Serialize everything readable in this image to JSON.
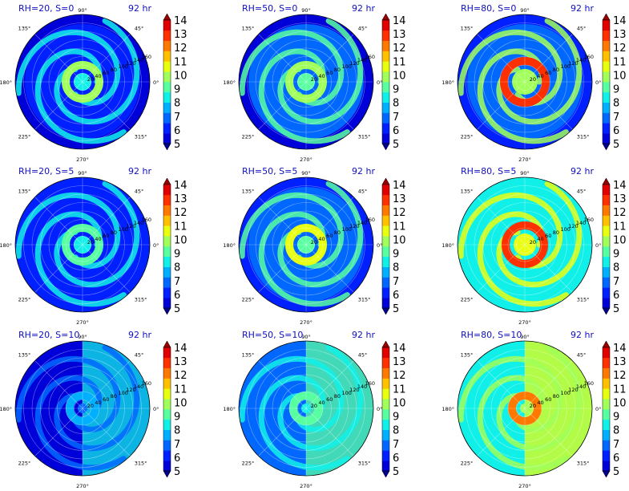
{
  "time_label": "92 hr",
  "colorbar": {
    "levels": [
      5,
      6,
      7,
      8,
      9,
      10,
      11,
      12,
      13,
      14
    ],
    "tick_labels": [
      "5",
      "6",
      "7",
      "8",
      "9",
      "10",
      "11",
      "12",
      "13",
      "14"
    ],
    "colors": [
      "#00008f",
      "#0000d8",
      "#0020ff",
      "#0068ff",
      "#00b0ff",
      "#10f0e8",
      "#58ffa0",
      "#a0ff58",
      "#e8ff10",
      "#ffc000",
      "#ff7800",
      "#ff3000",
      "#e00000",
      "#980000"
    ],
    "extend": "both"
  },
  "polar_axes": {
    "angle_labels": [
      "0°",
      "45°",
      "90°",
      "135°",
      "180°",
      "225°",
      "270°",
      "315°"
    ],
    "radius_labels": [
      "20",
      "40",
      "60",
      "80",
      "100",
      "120",
      "140",
      "160"
    ]
  },
  "chart_data": [
    {
      "type": "heatmap",
      "projection": "polar",
      "title": "RH=20, S=0",
      "time": "92 hr",
      "rmax": 160,
      "features": {
        "background_level": 6.0,
        "outer_ring_level": 5.0,
        "core_level": 9.5,
        "spiral_band_level": 8.5,
        "inner_eye_radius": 15
      }
    },
    {
      "type": "heatmap",
      "projection": "polar",
      "title": "RH=50, S=0",
      "time": "92 hr",
      "rmax": 160,
      "features": {
        "background_level": 6.5,
        "outer_ring_level": 5.5,
        "core_level": 10.0,
        "spiral_band_level": 9.0,
        "inner_eye_radius": 15
      }
    },
    {
      "type": "heatmap",
      "projection": "polar",
      "title": "RH=80, S=0",
      "time": "92 hr",
      "rmax": 160,
      "features": {
        "background_level": 7.0,
        "outer_ring_level": 6.0,
        "core_level": 13.0,
        "spiral_band_level": 9.5,
        "inner_eye_radius": 20
      }
    },
    {
      "type": "heatmap",
      "projection": "polar",
      "title": "RH=20, S=5",
      "time": "92 hr",
      "rmax": 160,
      "features": {
        "background_level": 6.0,
        "outer_ring_level": 6.0,
        "core_level": 9.0,
        "spiral_band_level": 8.5,
        "inner_eye_radius": 15
      }
    },
    {
      "type": "heatmap",
      "projection": "polar",
      "title": "RH=50, S=5",
      "time": "92 hr",
      "rmax": 160,
      "features": {
        "background_level": 6.5,
        "outer_ring_level": 6.0,
        "core_level": 10.5,
        "spiral_band_level": 9.0,
        "inner_eye_radius": 15
      }
    },
    {
      "type": "heatmap",
      "projection": "polar",
      "title": "RH=80, S=5",
      "time": "92 hr",
      "rmax": 160,
      "features": {
        "background_level": 8.5,
        "outer_ring_level": 8.0,
        "core_level": 13.0,
        "spiral_band_level": 10.5,
        "inner_eye_radius": 18
      }
    },
    {
      "type": "heatmap",
      "projection": "polar",
      "title": "RH=20, S=10",
      "time": "92 hr",
      "rmax": 160,
      "features": {
        "background_level": 5.5,
        "outer_ring_level": 5.5,
        "core_level": 7.5,
        "spiral_band_level": 7.0,
        "inner_eye_radius": 10,
        "east_half_level": 8.0
      }
    },
    {
      "type": "heatmap",
      "projection": "polar",
      "title": "RH=50, S=10",
      "time": "92 hr",
      "rmax": 160,
      "features": {
        "background_level": 7.0,
        "outer_ring_level": 6.5,
        "core_level": 9.0,
        "spiral_band_level": 8.5,
        "inner_eye_radius": 10,
        "east_half_level": 9.0
      }
    },
    {
      "type": "heatmap",
      "projection": "polar",
      "title": "RH=80, S=10",
      "time": "92 hr",
      "rmax": 160,
      "features": {
        "background_level": 8.0,
        "outer_ring_level": 8.0,
        "core_level": 12.5,
        "spiral_band_level": 10.0,
        "inner_eye_radius": 10,
        "east_half_level": 11.0
      }
    }
  ]
}
